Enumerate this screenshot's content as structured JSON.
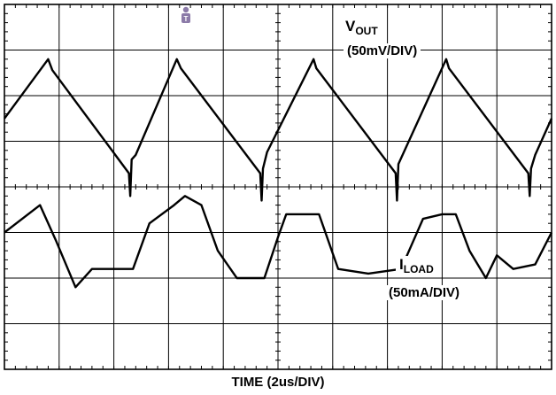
{
  "chart_data": {
    "type": "line",
    "xlabel": "TIME (2us/DIV)",
    "grid": true,
    "x_divisions": 10,
    "y_divisions": 8,
    "xlim": [
      0,
      20
    ],
    "series": [
      {
        "name": "VOUT",
        "label_main": "V",
        "label_sub": "OUT",
        "scale": "(50mV/DIV)",
        "color": "#000000",
        "x": [
          0,
          1.6,
          1.75,
          4.55,
          4.6,
          4.65,
          4.8,
          6.3,
          6.45,
          9.35,
          9.4,
          9.45,
          9.6,
          11.3,
          11.4,
          14.3,
          14.35,
          14.4,
          14.6,
          16.15,
          16.25,
          19.15,
          19.2,
          19.25,
          19.4,
          20
        ],
        "values": [
          -25,
          40,
          28,
          -85,
          -110,
          -70,
          -65,
          40,
          30,
          -85,
          -115,
          -80,
          -62,
          40,
          30,
          -85,
          -115,
          -75,
          -62,
          40,
          30,
          -85,
          -110,
          -80,
          -65,
          -25
        ]
      },
      {
        "name": "ILOAD",
        "label_main": "I",
        "label_sub": "LOAD",
        "scale": "(50mA/DIV)",
        "color": "#000000",
        "x": [
          0,
          1.3,
          1.9,
          2.6,
          3.2,
          4.7,
          5.3,
          6.2,
          6.6,
          7.2,
          7.8,
          8.5,
          9.5,
          10.0,
          10.3,
          11.5,
          12.2,
          13.3,
          14.5,
          15.3,
          16.0,
          16.5,
          17.0,
          17.6,
          18.0,
          18.6,
          19.4,
          20
        ],
        "values": [
          10,
          40,
          0,
          -50,
          -30,
          -30,
          20,
          40,
          50,
          40,
          -10,
          -40,
          -40,
          5,
          30,
          30,
          -30,
          -35,
          -30,
          25,
          30,
          30,
          -10,
          -40,
          -15,
          -30,
          -25,
          10
        ]
      }
    ]
  }
}
